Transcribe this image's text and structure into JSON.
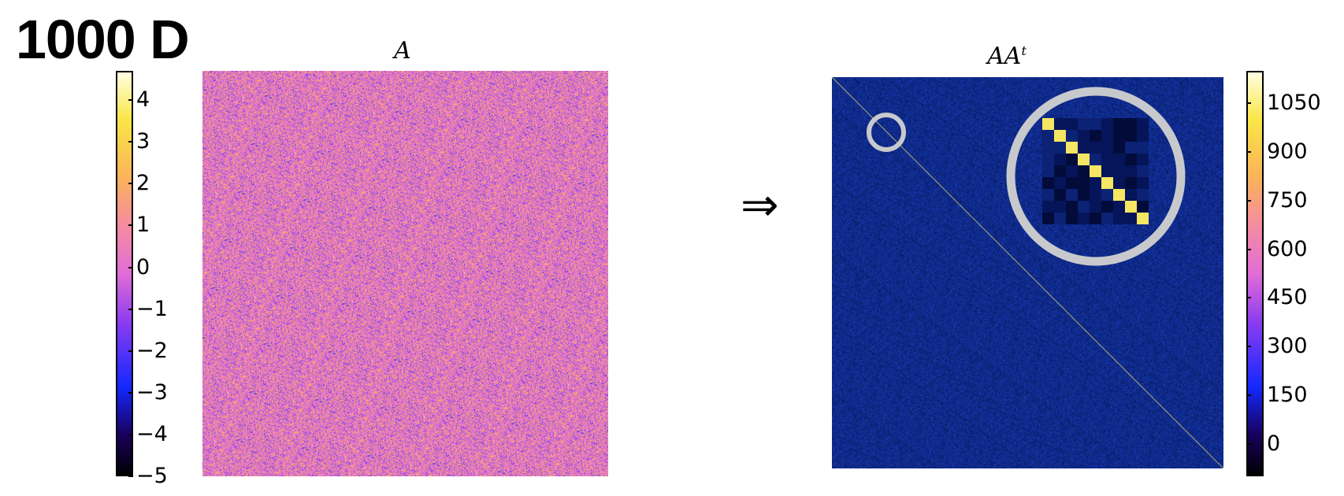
{
  "heading": "1000 D",
  "arrow_symbol": "⇒",
  "chart_data": [
    {
      "type": "heatmap",
      "title": "A",
      "matrix_size": 1000,
      "colormap": "spring-like (black → blue → purple → pink → orange → yellow → white)",
      "value_range": [
        -5,
        4.7
      ],
      "colorbar": {
        "ticks": [
          4,
          3,
          2,
          1,
          0,
          -1,
          -2,
          -3,
          -4,
          -5
        ],
        "tick_labels": [
          "4",
          "3",
          "2",
          "1",
          "0",
          "−1",
          "−2",
          "−3",
          "−4",
          "−5"
        ],
        "placement": "left"
      },
      "description": "Random Gaussian noise matrix"
    },
    {
      "type": "heatmap",
      "title": "AA",
      "title_superscript": "t",
      "matrix_size": 1000,
      "value_range": [
        -100,
        1150
      ],
      "diagonal_value": 1000,
      "off_diagonal_value": 0,
      "colorbar": {
        "ticks": [
          1050,
          900,
          750,
          600,
          450,
          300,
          150,
          0
        ],
        "tick_labels": [
          "1050",
          "900",
          "750",
          "600",
          "450",
          "300",
          "150",
          "0"
        ],
        "placement": "right"
      },
      "annotation": "zoomed inset of diagonal near top-left corner"
    }
  ],
  "colors": {
    "noise_blue": "#4a55ff",
    "noise_pink": "#e786d8",
    "noise_orange": "#f7a77c",
    "aat_background": "#0f2a8a",
    "diagonal_yellow": "#f5e663",
    "circle_gray": "#c7c9cc"
  }
}
